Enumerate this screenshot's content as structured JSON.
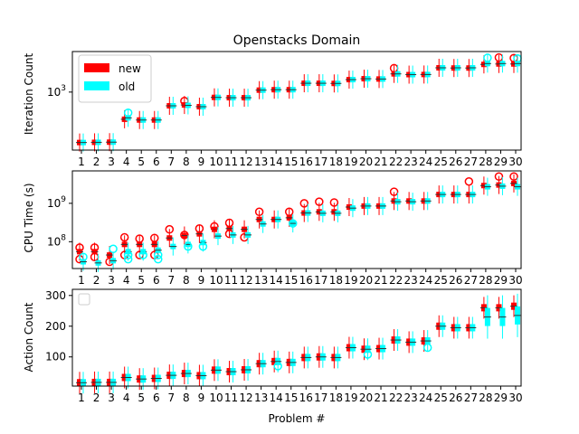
{
  "chart_data": [
    {
      "type": "box",
      "title": "Openstacks Domain",
      "ylabel": "Iteration Count",
      "xlabel": "",
      "yscale": "log",
      "ylim": [
        100,
        5000
      ],
      "ytick_labels": [
        {
          "value": 1000,
          "label": "10^3"
        }
      ],
      "categories": [
        "1",
        "2",
        "3",
        "4",
        "5",
        "6",
        "7",
        "8",
        "9",
        "10",
        "11",
        "12",
        "13",
        "14",
        "15",
        "16",
        "17",
        "18",
        "19",
        "20",
        "21",
        "22",
        "23",
        "24",
        "25",
        "26",
        "27",
        "28",
        "29",
        "30"
      ],
      "legend": {
        "position": "top-left",
        "entries": [
          {
            "name": "new",
            "color": "#ff0000"
          },
          {
            "name": "old",
            "color": "#00ffff"
          }
        ]
      },
      "series": [
        {
          "name": "new",
          "color": "#ff0000",
          "median": [
            135,
            136,
            137,
            340,
            330,
            330,
            580,
            600,
            560,
            810,
            800,
            800,
            1080,
            1100,
            1100,
            1420,
            1420,
            1410,
            1640,
            1700,
            1680,
            2060,
            2000,
            2010,
            2620,
            2600,
            2600,
            3000,
            3050,
            3050
          ],
          "outliers": [
            [],
            [],
            [],
            [],
            [],
            [],
            [],
            [
              700
            ],
            [],
            [],
            [],
            [],
            [],
            [],
            [],
            [],
            [],
            [],
            [],
            [],
            [],
            [
              2580
            ],
            [],
            [],
            [],
            [],
            [],
            [],
            [
              3950
            ],
            [
              3850
            ]
          ]
        },
        {
          "name": "old",
          "color": "#00ffff",
          "median": [
            135,
            136,
            137,
            360,
            330,
            330,
            580,
            590,
            560,
            810,
            800,
            800,
            1080,
            1100,
            1100,
            1420,
            1420,
            1410,
            1640,
            1700,
            1680,
            2060,
            2000,
            2010,
            2620,
            2620,
            2620,
            3100,
            3100,
            3100
          ],
          "outliers": [
            [],
            [],
            [],
            [
              440
            ],
            [],
            [],
            [],
            [],
            [],
            [],
            [],
            [],
            [],
            [],
            [],
            [],
            [],
            [],
            [],
            [],
            [],
            [],
            [],
            [],
            [],
            [],
            [],
            [
              3900
            ],
            [],
            [
              3800
            ]
          ]
        }
      ]
    },
    {
      "type": "box",
      "title": "",
      "ylabel": "CPU Time (s)",
      "xlabel": "",
      "yscale": "log",
      "ylim": [
        20000000,
        7000000000
      ],
      "ytick_labels": [
        {
          "value": 100000000,
          "label": "10^8"
        },
        {
          "value": 1000000000,
          "label": "10^9"
        }
      ],
      "categories": [
        "1",
        "2",
        "3",
        "4",
        "5",
        "6",
        "7",
        "8",
        "9",
        "10",
        "11",
        "12",
        "13",
        "14",
        "15",
        "16",
        "17",
        "18",
        "19",
        "20",
        "21",
        "22",
        "23",
        "24",
        "25",
        "26",
        "27",
        "28",
        "29",
        "30"
      ],
      "series": [
        {
          "name": "new",
          "color": "#ff0000",
          "median": [
            55000000,
            55000000,
            45000000,
            85000000,
            85000000,
            85000000,
            125000000,
            145000000,
            160000000,
            210000000,
            220000000,
            210000000,
            380000000,
            380000000,
            420000000,
            560000000,
            600000000,
            600000000,
            800000000,
            850000000,
            850000000,
            1150000000,
            1150000000,
            1150000000,
            1700000000,
            1700000000,
            1700000000,
            2900000000,
            3000000000,
            3300000000
          ],
          "outliers": [
            [
              70000000,
              35000000
            ],
            [
              70000000,
              40000000
            ],
            [
              30000000
            ],
            [
              130000000,
              45000000
            ],
            [
              120000000,
              45000000
            ],
            [
              125000000,
              45000000
            ],
            [
              210000000
            ],
            [
              150000000
            ],
            [
              220000000
            ],
            [
              250000000
            ],
            [
              310000000,
              160000000
            ],
            [
              130000000
            ],
            [
              600000000
            ],
            [],
            [
              600000000
            ],
            [
              1000000000
            ],
            [
              1100000000
            ],
            [
              1050000000
            ],
            [],
            [],
            [],
            [
              2000000000
            ],
            [],
            [],
            [],
            [],
            [
              3700000000
            ],
            [],
            [
              5000000000
            ],
            [
              5000000000
            ]
          ]
        },
        {
          "name": "old",
          "color": "#00ffff",
          "median": [
            30000000,
            28000000,
            32000000,
            55000000,
            55000000,
            60000000,
            75000000,
            85000000,
            95000000,
            140000000,
            150000000,
            150000000,
            290000000,
            380000000,
            300000000,
            560000000,
            550000000,
            550000000,
            750000000,
            850000000,
            850000000,
            1100000000,
            1100000000,
            1150000000,
            1700000000,
            1700000000,
            1700000000,
            2700000000,
            2800000000,
            2700000000
          ],
          "outliers": [
            [
              40000000
            ],
            [],
            [
              65000000
            ],
            [
              45000000,
              35000000
            ],
            [
              45000000
            ],
            [
              45000000,
              35000000
            ],
            [],
            [
              75000000
            ],
            [
              75000000
            ],
            [],
            [],
            [],
            [],
            [],
            [
              300000000
            ],
            [],
            [],
            [],
            [],
            [],
            [],
            [],
            [],
            [],
            [],
            [],
            [],
            [],
            [],
            []
          ]
        }
      ]
    },
    {
      "type": "box",
      "title": "",
      "ylabel": "Action Count",
      "xlabel": "Problem #",
      "yscale": "linear",
      "ylim": [
        5,
        320
      ],
      "yticks": [
        100,
        200,
        300
      ],
      "categories": [
        "1",
        "2",
        "3",
        "4",
        "5",
        "6",
        "7",
        "8",
        "9",
        "10",
        "11",
        "12",
        "13",
        "14",
        "15",
        "16",
        "17",
        "18",
        "19",
        "20",
        "21",
        "22",
        "23",
        "24",
        "25",
        "26",
        "27",
        "28",
        "29",
        "30"
      ],
      "legend": {
        "position": "top-left",
        "entries": []
      },
      "series": [
        {
          "name": "new",
          "color": "#ff0000",
          "median": [
            16,
            17,
            17,
            33,
            28,
            30,
            40,
            46,
            39,
            57,
            52,
            58,
            78,
            85,
            82,
            98,
            100,
            98,
            130,
            125,
            127,
            155,
            148,
            152,
            200,
            195,
            195,
            260,
            260,
            265
          ],
          "outliers": [
            [],
            [],
            [],
            [],
            [],
            [],
            [],
            [],
            [],
            [],
            [],
            [],
            [],
            [],
            [],
            [],
            [],
            [],
            [],
            [],
            [],
            [],
            [],
            [],
            [],
            [],
            [],
            [],
            [],
            []
          ]
        },
        {
          "name": "old",
          "color": "#00ffff",
          "median": [
            16,
            17,
            17,
            33,
            28,
            30,
            40,
            46,
            39,
            57,
            52,
            58,
            78,
            85,
            82,
            98,
            100,
            98,
            130,
            125,
            127,
            155,
            148,
            152,
            200,
            195,
            195,
            230,
            230,
            235
          ],
          "outliers": [
            [],
            [],
            [],
            [],
            [],
            [],
            [],
            [],
            [],
            [],
            [],
            [],
            [],
            [
              70
            ],
            [],
            [],
            [],
            [],
            [],
            [
              108
            ],
            [],
            [],
            [],
            [
              130
            ],
            [],
            [],
            [],
            [],
            [],
            []
          ]
        }
      ]
    }
  ]
}
